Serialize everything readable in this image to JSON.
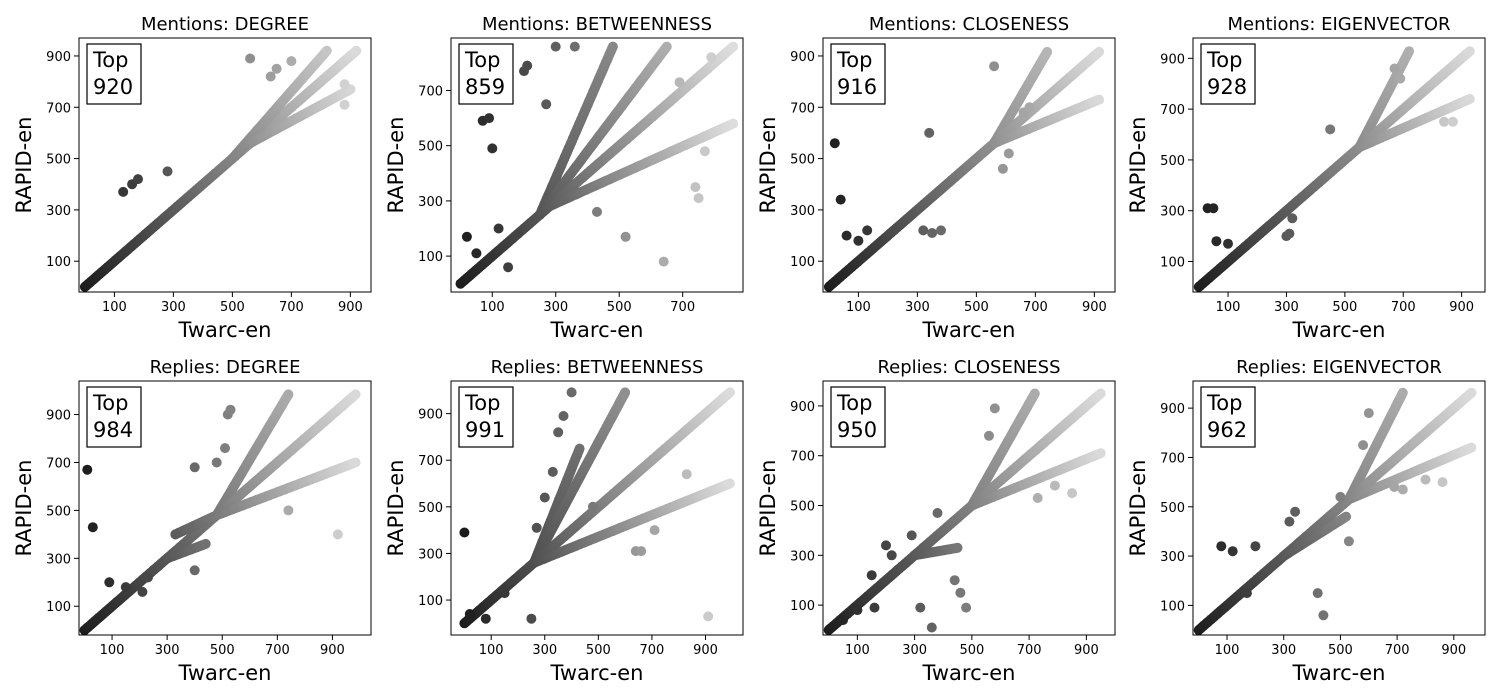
{
  "figure": {
    "xlabel": "Twarc-en",
    "ylabel": "RAPID-en",
    "legend_prefix": "Top",
    "legend_position": "top-left"
  },
  "chart_data": [
    {
      "type": "scatter",
      "title": "Mentions: DEGREE",
      "top": "920",
      "xlim": [
        -20,
        970
      ],
      "ylim": [
        -20,
        970
      ],
      "xticks": [
        100,
        300,
        500,
        700,
        900
      ],
      "yticks": [
        100,
        300,
        500,
        700,
        900
      ],
      "branches": [
        {
          "from": [
            0,
            0
          ],
          "to": [
            920,
            920
          ]
        },
        {
          "from": [
            500,
            500
          ],
          "to": [
            820,
            920
          ]
        },
        {
          "from": [
            560,
            560
          ],
          "to": [
            900,
            770
          ]
        }
      ],
      "outliers": [
        [
          130,
          370
        ],
        [
          160,
          400
        ],
        [
          180,
          420
        ],
        [
          280,
          450
        ],
        [
          560,
          890
        ],
        [
          630,
          820
        ],
        [
          650,
          850
        ],
        [
          700,
          880
        ],
        [
          880,
          790
        ],
        [
          880,
          710
        ]
      ]
    },
    {
      "type": "scatter",
      "title": "Mentions: BETWEENNESS",
      "top": "859",
      "xlim": [
        -30,
        890
      ],
      "ylim": [
        -30,
        890
      ],
      "xticks": [
        100,
        300,
        500,
        700
      ],
      "yticks": [
        100,
        300,
        500,
        700
      ],
      "branches": [
        {
          "from": [
            0,
            0
          ],
          "to": [
            250,
            250
          ]
        },
        {
          "from": [
            250,
            250
          ],
          "to": [
            480,
            859
          ]
        },
        {
          "from": [
            250,
            250
          ],
          "to": [
            650,
            859
          ]
        },
        {
          "from": [
            250,
            250
          ],
          "to": [
            859,
            859
          ]
        },
        {
          "from": [
            260,
            270
          ],
          "to": [
            859,
            580
          ]
        }
      ],
      "outliers": [
        [
          20,
          170
        ],
        [
          50,
          110
        ],
        [
          70,
          590
        ],
        [
          90,
          600
        ],
        [
          100,
          490
        ],
        [
          120,
          200
        ],
        [
          150,
          60
        ],
        [
          180,
          180
        ],
        [
          200,
          770
        ],
        [
          210,
          790
        ],
        [
          270,
          650
        ],
        [
          300,
          859
        ],
        [
          360,
          859
        ],
        [
          430,
          260
        ],
        [
          520,
          170
        ],
        [
          640,
          80
        ],
        [
          690,
          730
        ],
        [
          740,
          350
        ],
        [
          750,
          310
        ],
        [
          770,
          480
        ],
        [
          790,
          820
        ]
      ]
    },
    {
      "type": "scatter",
      "title": "Mentions: CLOSENESS",
      "top": "916",
      "xlim": [
        -20,
        970
      ],
      "ylim": [
        -20,
        970
      ],
      "xticks": [
        100,
        300,
        500,
        700,
        900
      ],
      "yticks": [
        100,
        300,
        500,
        700,
        900
      ],
      "branches": [
        {
          "from": [
            0,
            0
          ],
          "to": [
            560,
            560
          ]
        },
        {
          "from": [
            560,
            560
          ],
          "to": [
            740,
            916
          ]
        },
        {
          "from": [
            560,
            560
          ],
          "to": [
            916,
            916
          ]
        },
        {
          "from": [
            560,
            560
          ],
          "to": [
            916,
            730
          ]
        }
      ],
      "outliers": [
        [
          20,
          560
        ],
        [
          40,
          340
        ],
        [
          60,
          200
        ],
        [
          100,
          180
        ],
        [
          130,
          220
        ],
        [
          320,
          220
        ],
        [
          340,
          600
        ],
        [
          350,
          210
        ],
        [
          380,
          220
        ],
        [
          560,
          860
        ],
        [
          590,
          460
        ],
        [
          610,
          520
        ],
        [
          660,
          680
        ],
        [
          680,
          700
        ]
      ]
    },
    {
      "type": "scatter",
      "title": "Mentions: EIGENVECTOR",
      "top": "928",
      "xlim": [
        -20,
        980
      ],
      "ylim": [
        -20,
        980
      ],
      "xticks": [
        100,
        300,
        500,
        700,
        900
      ],
      "yticks": [
        100,
        300,
        500,
        700,
        900
      ],
      "branches": [
        {
          "from": [
            0,
            0
          ],
          "to": [
            550,
            550
          ]
        },
        {
          "from": [
            550,
            550
          ],
          "to": [
            720,
            928
          ]
        },
        {
          "from": [
            550,
            550
          ],
          "to": [
            928,
            928
          ]
        },
        {
          "from": [
            550,
            550
          ],
          "to": [
            928,
            740
          ]
        }
      ],
      "outliers": [
        [
          30,
          310
        ],
        [
          50,
          310
        ],
        [
          60,
          180
        ],
        [
          100,
          170
        ],
        [
          300,
          200
        ],
        [
          310,
          210
        ],
        [
          320,
          270
        ],
        [
          450,
          620
        ],
        [
          670,
          860
        ],
        [
          690,
          820
        ],
        [
          840,
          650
        ],
        [
          870,
          650
        ]
      ]
    },
    {
      "type": "scatter",
      "title": "Replies: DEGREE",
      "top": "984",
      "xlim": [
        -20,
        1040
      ],
      "ylim": [
        -20,
        1040
      ],
      "xticks": [
        100,
        300,
        500,
        700,
        900
      ],
      "yticks": [
        100,
        300,
        500,
        700,
        900
      ],
      "branches": [
        {
          "from": [
            0,
            0
          ],
          "to": [
            480,
            480
          ]
        },
        {
          "from": [
            300,
            300
          ],
          "to": [
            440,
            360
          ]
        },
        {
          "from": [
            330,
            400
          ],
          "to": [
            480,
            480
          ]
        },
        {
          "from": [
            480,
            480
          ],
          "to": [
            740,
            984
          ]
        },
        {
          "from": [
            480,
            480
          ],
          "to": [
            984,
            984
          ]
        },
        {
          "from": [
            480,
            480
          ],
          "to": [
            984,
            700
          ]
        }
      ],
      "outliers": [
        [
          10,
          670
        ],
        [
          30,
          430
        ],
        [
          90,
          200
        ],
        [
          150,
          180
        ],
        [
          210,
          160
        ],
        [
          230,
          220
        ],
        [
          330,
          400
        ],
        [
          400,
          680
        ],
        [
          400,
          250
        ],
        [
          480,
          700
        ],
        [
          510,
          760
        ],
        [
          520,
          900
        ],
        [
          530,
          920
        ],
        [
          740,
          500
        ],
        [
          920,
          400
        ]
      ]
    },
    {
      "type": "scatter",
      "title": "Replies: BETWEENNESS",
      "top": "991",
      "xlim": [
        -50,
        1040
      ],
      "ylim": [
        -50,
        1040
      ],
      "xticks": [
        100,
        300,
        500,
        700,
        900
      ],
      "yticks": [
        100,
        300,
        500,
        700,
        900
      ],
      "branches": [
        {
          "from": [
            0,
            0
          ],
          "to": [
            260,
            260
          ]
        },
        {
          "from": [
            260,
            260
          ],
          "to": [
            430,
            750
          ]
        },
        {
          "from": [
            260,
            260
          ],
          "to": [
            600,
            991
          ]
        },
        {
          "from": [
            260,
            260
          ],
          "to": [
            991,
            991
          ]
        },
        {
          "from": [
            260,
            260
          ],
          "to": [
            991,
            600
          ]
        }
      ],
      "outliers": [
        [
          0,
          390
        ],
        [
          20,
          40
        ],
        [
          80,
          20
        ],
        [
          150,
          130
        ],
        [
          250,
          20
        ],
        [
          270,
          410
        ],
        [
          300,
          540
        ],
        [
          330,
          650
        ],
        [
          350,
          820
        ],
        [
          370,
          890
        ],
        [
          400,
          991
        ],
        [
          480,
          500
        ],
        [
          640,
          310
        ],
        [
          660,
          310
        ],
        [
          710,
          400
        ],
        [
          830,
          640
        ],
        [
          910,
          30
        ]
      ]
    },
    {
      "type": "scatter",
      "title": "Replies: CLOSENESS",
      "top": "950",
      "xlim": [
        -20,
        1000
      ],
      "ylim": [
        -20,
        1000
      ],
      "xticks": [
        100,
        300,
        500,
        700,
        900
      ],
      "yticks": [
        100,
        300,
        500,
        700,
        900
      ],
      "branches": [
        {
          "from": [
            0,
            0
          ],
          "to": [
            330,
            330
          ]
        },
        {
          "from": [
            300,
            300
          ],
          "to": [
            450,
            330
          ]
        },
        {
          "from": [
            330,
            330
          ],
          "to": [
            500,
            500
          ]
        },
        {
          "from": [
            500,
            500
          ],
          "to": [
            720,
            950
          ]
        },
        {
          "from": [
            500,
            500
          ],
          "to": [
            950,
            950
          ]
        },
        {
          "from": [
            500,
            500
          ],
          "to": [
            950,
            710
          ]
        }
      ],
      "outliers": [
        [
          50,
          40
        ],
        [
          100,
          80
        ],
        [
          150,
          220
        ],
        [
          160,
          90
        ],
        [
          200,
          340
        ],
        [
          220,
          300
        ],
        [
          290,
          380
        ],
        [
          320,
          90
        ],
        [
          360,
          10
        ],
        [
          380,
          470
        ],
        [
          440,
          200
        ],
        [
          460,
          150
        ],
        [
          480,
          90
        ],
        [
          560,
          780
        ],
        [
          580,
          890
        ],
        [
          730,
          530
        ],
        [
          790,
          580
        ],
        [
          850,
          550
        ]
      ]
    },
    {
      "type": "scatter",
      "title": "Replies: EIGENVECTOR",
      "top": "962",
      "xlim": [
        -20,
        1010
      ],
      "ylim": [
        -20,
        1010
      ],
      "xticks": [
        100,
        300,
        500,
        700,
        900
      ],
      "yticks": [
        100,
        300,
        500,
        700,
        900
      ],
      "branches": [
        {
          "from": [
            0,
            0
          ],
          "to": [
            530,
            530
          ]
        },
        {
          "from": [
            300,
            300
          ],
          "to": [
            520,
            460
          ]
        },
        {
          "from": [
            530,
            530
          ],
          "to": [
            720,
            962
          ]
        },
        {
          "from": [
            530,
            530
          ],
          "to": [
            962,
            962
          ]
        },
        {
          "from": [
            530,
            530
          ],
          "to": [
            962,
            740
          ]
        }
      ],
      "outliers": [
        [
          80,
          340
        ],
        [
          120,
          320
        ],
        [
          170,
          150
        ],
        [
          200,
          340
        ],
        [
          320,
          440
        ],
        [
          340,
          480
        ],
        [
          420,
          150
        ],
        [
          440,
          60
        ],
        [
          500,
          540
        ],
        [
          530,
          360
        ],
        [
          580,
          750
        ],
        [
          600,
          880
        ],
        [
          690,
          580
        ],
        [
          720,
          570
        ],
        [
          800,
          610
        ],
        [
          860,
          600
        ]
      ]
    }
  ]
}
